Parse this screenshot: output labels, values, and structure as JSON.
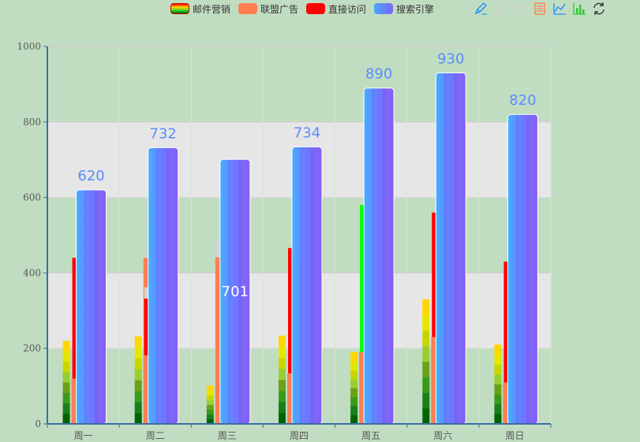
{
  "chart_data": {
    "type": "bar",
    "categories": [
      "周一",
      "周二",
      "周三",
      "周四",
      "周五",
      "周六",
      "周日"
    ],
    "ylim": [
      0,
      1000
    ],
    "yticks": [
      0,
      200,
      400,
      600,
      800,
      1000
    ],
    "grid": "horizontal bands",
    "legend_position": "top",
    "series": [
      {
        "name": "邮件营销",
        "values": [
          220,
          232,
          101,
          234,
          190,
          330,
          210
        ],
        "color": "#9acd32",
        "style": "gradient-green-yellow"
      },
      {
        "name": "联盟广告",
        "values": [
          120,
          440,
          441,
          134,
          190,
          230,
          110
        ],
        "color": "#ff7f50",
        "highlight_color": "#d3d3d3",
        "highlight_top": [
          120,
          360,
          490,
          134,
          190,
          230,
          110
        ]
      },
      {
        "name": "直接访问",
        "values": [
          320,
          150,
          0,
          332,
          390,
          330,
          320
        ],
        "base": [
          120,
          182,
          441,
          134,
          190,
          230,
          110
        ],
        "color": "#ff0000",
        "special_color": "#00ff00",
        "special_index": 4,
        "highlight_color": "#d3d3d3",
        "highlight_top": [
          440,
          362,
          441,
          466,
          580,
          560,
          430
        ]
      },
      {
        "name": "搜索引擎",
        "values": [
          620,
          732,
          701,
          734,
          890,
          930,
          820
        ],
        "color": "#7b68ee",
        "gradient_left": "#4aa8ff",
        "label_color": "#5b8cff",
        "inside_label_index": 2
      }
    ]
  },
  "toolbox": [
    {
      "icon": "mark-icon",
      "color": "#1e90ff"
    },
    {
      "icon": "mark-undo-icon",
      "color": "#cccccc"
    },
    {
      "icon": "mark-clear-icon",
      "color": "#cccccc"
    },
    {
      "icon": "data-view-icon",
      "color": "#ff7f50"
    },
    {
      "icon": "line-chart-icon",
      "color": "#1e90ff"
    },
    {
      "icon": "bar-chart-icon",
      "color": "#32cd32"
    },
    {
      "icon": "restore-icon",
      "color": "#333333"
    }
  ]
}
